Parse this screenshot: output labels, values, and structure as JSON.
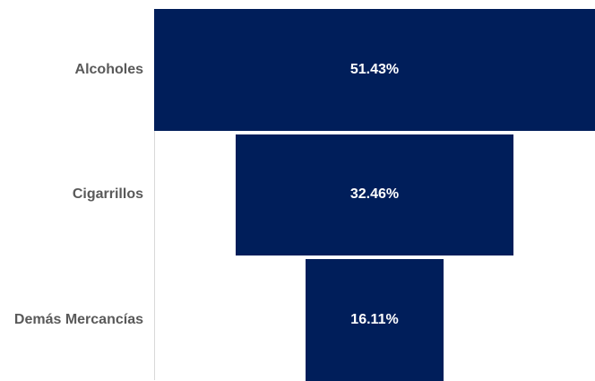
{
  "chart_data": {
    "type": "funnel",
    "title": "",
    "categories": [
      "Alcoholes",
      "Cigarrillos",
      "Demás Mercancías"
    ],
    "values": [
      51.43,
      32.46,
      16.11
    ],
    "value_labels": [
      "51.43%",
      "32.46%",
      "16.11%"
    ],
    "unit": "%",
    "legend": "none",
    "grid": false
  },
  "colors": {
    "bar": "#001e5a",
    "label_text": "#ffffff",
    "category_text": "#595959",
    "axis": "#d9d9d9"
  }
}
